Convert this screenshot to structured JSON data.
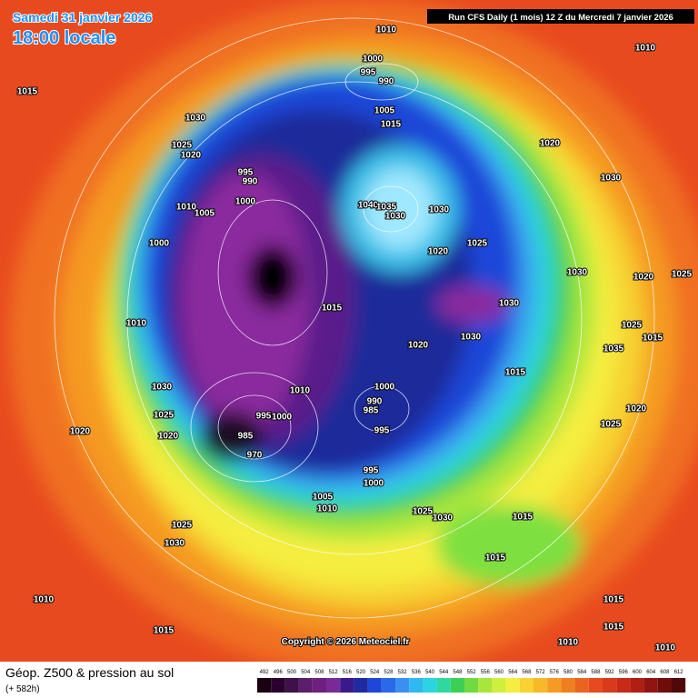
{
  "header": {
    "date": "Samedi 31 janvier 2026",
    "time": "18:00 locale",
    "run": "Run CFS Daily (1 mois) 12 Z du Mercredi 7 janvier 2026"
  },
  "copyright": "Copyright © 2026 Meteociel.fr",
  "footer": {
    "title": "Géop. Z500 & pression au sol",
    "subtitle": "(+ 582h)"
  },
  "scale": [
    492,
    496,
    500,
    504,
    508,
    512,
    516,
    520,
    524,
    528,
    532,
    536,
    540,
    544,
    548,
    552,
    556,
    560,
    564,
    568,
    572,
    576,
    580,
    584,
    588,
    592,
    596,
    600,
    604,
    608,
    612
  ],
  "isobar_labels": [
    1010,
    1000,
    995,
    990,
    1010,
    1015,
    1005,
    1015,
    1030,
    1025,
    1020,
    1020,
    995,
    990,
    1000,
    1010,
    1005,
    1040,
    1035,
    1030,
    1030,
    1030,
    1000,
    1020,
    1025,
    1030,
    1020,
    1025,
    1030,
    1015,
    1010,
    1025,
    1015,
    1020,
    1030,
    1035,
    1015,
    1030,
    1010,
    1000,
    990,
    985,
    1025,
    1000,
    995,
    995,
    1020,
    1025,
    1020,
    1020,
    985,
    970,
    995,
    1000,
    1005,
    1010,
    1025,
    1030,
    1015,
    1025,
    1030,
    1015,
    1010,
    1015,
    1015,
    1015,
    1010,
    1010
  ]
}
